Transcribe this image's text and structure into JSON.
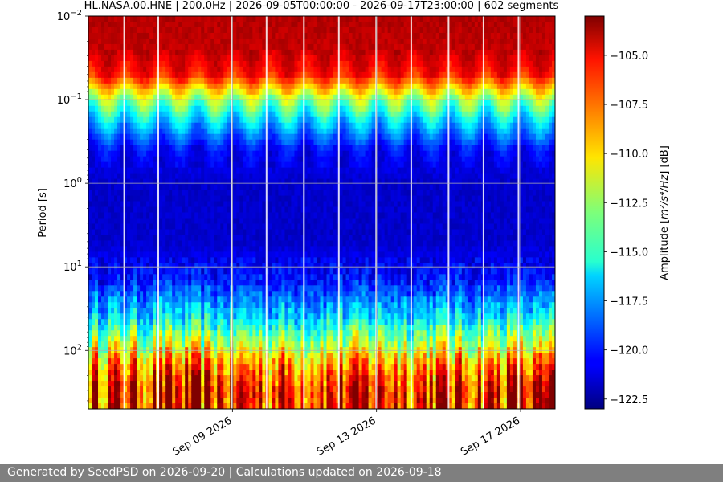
{
  "chart_data": {
    "type": "heatmap",
    "title": "HL.NASA.00.HNE | 200.0Hz | 2026-09-05T00:00:00 - 2026-09-17T23:00:00 | 602 segments",
    "xlabel": "",
    "ylabel": "Period [s]",
    "y_scale": "log",
    "y_inverted": true,
    "ylim_seconds": [
      0.01,
      500
    ],
    "y_ticks": [
      {
        "value": 0.01,
        "base": "10",
        "exp": "−2"
      },
      {
        "value": 0.1,
        "base": "10",
        "exp": "−1"
      },
      {
        "value": 1,
        "base": "10",
        "exp": "0"
      },
      {
        "value": 10,
        "base": "10",
        "exp": "1"
      },
      {
        "value": 100,
        "base": "10",
        "exp": "2"
      }
    ],
    "x_range": [
      "2026-09-05T00:00:00",
      "2026-09-17T23:00:00"
    ],
    "x_ticks": [
      {
        "date": "2026-09-09",
        "label": "Sep 09 2026"
      },
      {
        "date": "2026-09-13",
        "label": "Sep 13 2026"
      },
      {
        "date": "2026-09-17",
        "label": "Sep 17 2026"
      }
    ],
    "grid": true,
    "colorbar": {
      "label_prefix": "Amplitude [",
      "label_math": "m²/s⁴/Hz",
      "label_suffix": "] [dB]",
      "colormap": "jet",
      "range": [
        -123,
        -103
      ],
      "ticks": [
        "−105.0",
        "−107.5",
        "−110.0",
        "−112.5",
        "−115.0",
        "−117.5",
        "−120.0",
        "−122.5"
      ],
      "tick_values": [
        -105.0,
        -107.5,
        -110.0,
        -112.5,
        -115.0,
        -117.5,
        -120.0,
        -122.5
      ]
    },
    "amplitude_profile_db": [
      {
        "period_s": 0.01,
        "db": -104.0
      },
      {
        "period_s": 0.025,
        "db": -104.3
      },
      {
        "period_s": 0.05,
        "db": -105.8
      },
      {
        "period_s": 0.1,
        "db": -112.5
      },
      {
        "period_s": 0.2,
        "db": -117.0
      },
      {
        "period_s": 0.4,
        "db": -120.5
      },
      {
        "period_s": 1,
        "db": -121.5
      },
      {
        "period_s": 5,
        "db": -121.5
      },
      {
        "period_s": 15,
        "db": -120.0
      },
      {
        "period_s": 40,
        "db": -116.0
      },
      {
        "period_s": 80,
        "db": -112.0
      },
      {
        "period_s": 150,
        "db": -108.0
      },
      {
        "period_s": 300,
        "db": -105.5
      }
    ]
  },
  "footer": {
    "text": "Generated by SeedPSD on 2026-09-20 | Calculations updated on 2026-09-18"
  }
}
